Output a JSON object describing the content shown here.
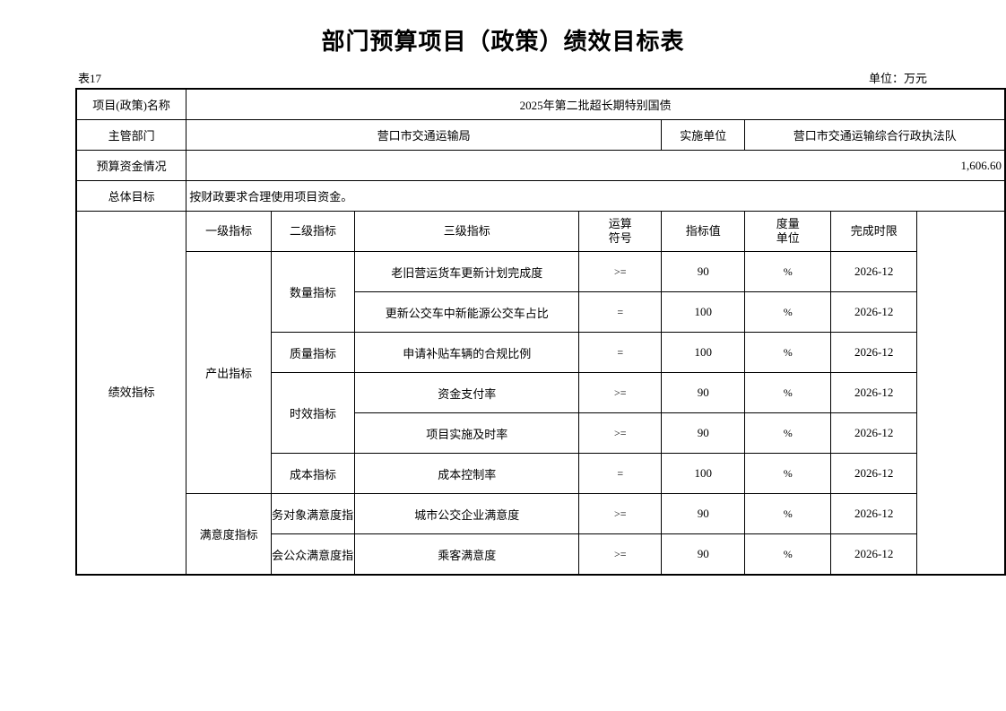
{
  "title": "部门预算项目（政策）绩效目标表",
  "table_no": "表17",
  "unit": "单位：万元",
  "info": {
    "name_label": "项目(政策)名称",
    "name": "2025年第二批超长期特别国债",
    "dept_label": "主管部门",
    "dept": "营口市交通运输局",
    "impl_label": "实施单位",
    "impl": "营口市交通运输综合行政执法队",
    "budget_label": "预算资金情况",
    "budget": "1,606.60",
    "goal_label": "总体目标",
    "goal": "按财政要求合理使用项目资金。"
  },
  "perf_label": "绩效指标",
  "headers": {
    "l1": "一级指标",
    "l2": "二级指标",
    "l3": "三级指标",
    "op1": "运算",
    "op2": "符号",
    "val": "指标值",
    "unit1": "度量",
    "unit2": "单位",
    "deadline": "完成时限"
  },
  "groups": {
    "output": "产出指标",
    "satisfaction": "满意度指标"
  },
  "sub": {
    "qty": "数量指标",
    "quality": "质量指标",
    "time": "时效指标",
    "cost": "成本指标",
    "svc": "务对象满意度指",
    "pub": "会公众满意度指"
  },
  "rows": [
    {
      "name": "老旧营运货车更新计划完成度",
      "op": ">=",
      "value": "90",
      "unit": "%",
      "deadline": "2026-12"
    },
    {
      "name": "更新公交车中新能源公交车占比",
      "op": "=",
      "value": "100",
      "unit": "%",
      "deadline": "2026-12"
    },
    {
      "name": "申请补贴车辆的合规比例",
      "op": "=",
      "value": "100",
      "unit": "%",
      "deadline": "2026-12"
    },
    {
      "name": "资金支付率",
      "op": ">=",
      "value": "90",
      "unit": "%",
      "deadline": "2026-12"
    },
    {
      "name": "项目实施及时率",
      "op": ">=",
      "value": "90",
      "unit": "%",
      "deadline": "2026-12"
    },
    {
      "name": "成本控制率",
      "op": "=",
      "value": "100",
      "unit": "%",
      "deadline": "2026-12"
    },
    {
      "name": "城市公交企业满意度",
      "op": ">=",
      "value": "90",
      "unit": "%",
      "deadline": "2026-12"
    },
    {
      "name": "乘客满意度",
      "op": ">=",
      "value": "90",
      "unit": "%",
      "deadline": "2026-12"
    }
  ]
}
